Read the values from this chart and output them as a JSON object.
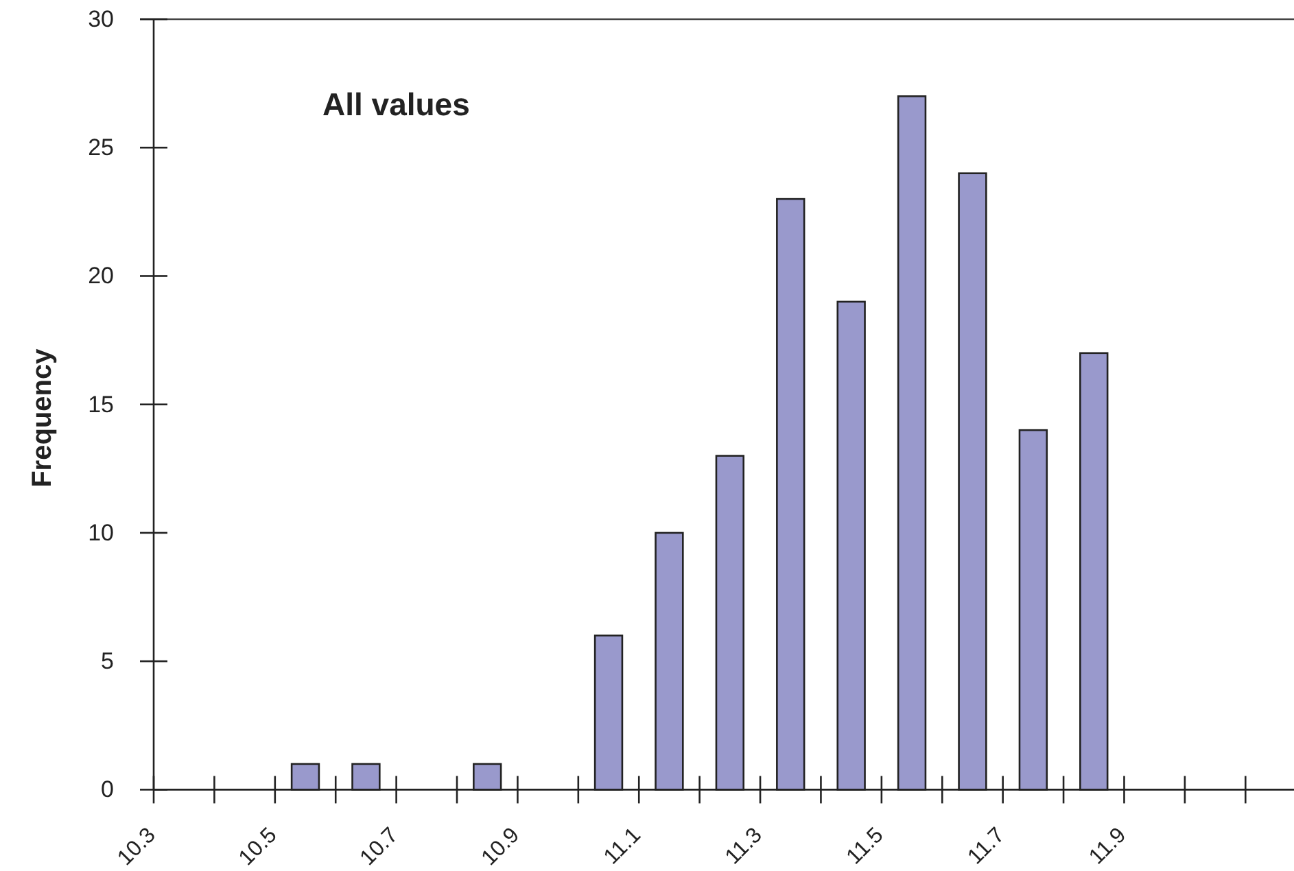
{
  "chart_data": {
    "type": "histogram",
    "title": "All values",
    "ylabel": "Frequency",
    "bins": [
      10.5,
      10.6,
      10.7,
      10.8,
      10.9,
      11.0,
      11.1,
      11.2,
      11.3,
      11.4,
      11.5,
      11.6,
      11.7,
      11.8,
      11.9
    ],
    "values": [
      1,
      1,
      0,
      1,
      0,
      6,
      10,
      13,
      23,
      19,
      27,
      24,
      14,
      17
    ],
    "color": "#9999cc",
    "xlim": [
      10.3,
      12.18
    ],
    "xticks": [
      10.3,
      {
        "value": 10.4,
        "label": null
      },
      10.5,
      {
        "value": 10.6,
        "label": null
      },
      10.7,
      {
        "value": 10.8,
        "label": null
      },
      10.9,
      {
        "value": 11.0,
        "label": null
      },
      11.1,
      {
        "value": 11.2,
        "label": null
      },
      11.3,
      {
        "value": 11.4,
        "label": null
      },
      11.5,
      {
        "value": 11.6,
        "label": null
      },
      11.7,
      {
        "value": 11.8,
        "label": null
      },
      11.9,
      {
        "value": 12.0,
        "label": null
      },
      {
        "value": 12.1,
        "label": null
      }
    ],
    "ylim": [
      0,
      30
    ],
    "yticks": [
      0,
      5,
      10,
      15,
      20,
      25,
      30
    ]
  }
}
